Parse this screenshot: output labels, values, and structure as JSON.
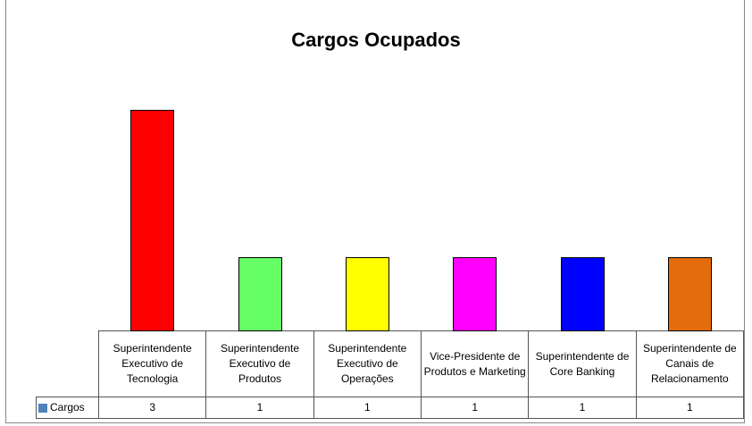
{
  "chart_data": {
    "type": "bar",
    "title": "Cargos Ocupados",
    "categories": [
      "Superintendente Executivo de Tecnologia",
      "Superintendente Executivo de Produtos",
      "Superintendente Executivo de Operações",
      "Vice-Presidente de Produtos e Marketing",
      "Superintendente de Core Banking",
      "Superintendente de Canais de Relacionamento"
    ],
    "series": [
      {
        "name": "Cargos",
        "color": "#4f81bd",
        "values": [
          3,
          1,
          1,
          1,
          1,
          1
        ],
        "colors": [
          "#ff0000",
          "#66ff66",
          "#ffff00",
          "#ff00ff",
          "#0000ff",
          "#e46c0a"
        ]
      }
    ],
    "ylim": [
      0,
      3.5
    ],
    "data_table": true
  }
}
